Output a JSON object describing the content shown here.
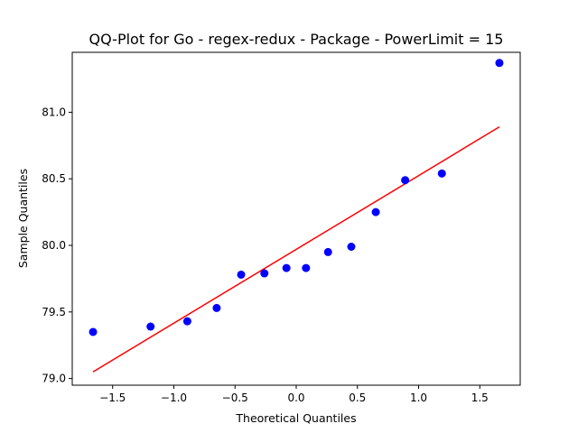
{
  "chart_data": {
    "type": "scatter",
    "title": "QQ-Plot for Go - regex-redux - Package - PowerLimit = 15",
    "xlabel": "Theoretical Quantiles",
    "ylabel": "Sample Quantiles",
    "xlim": [
      -1.83,
      1.83
    ],
    "ylim": [
      78.95,
      81.45
    ],
    "grid": false,
    "x_ticks": [
      -1.5,
      -1.0,
      -0.5,
      0.0,
      0.5,
      1.0,
      1.5
    ],
    "x_tick_labels": [
      "−1.5",
      "−1.0",
      "−0.5",
      "0.0",
      "0.5",
      "1.0",
      "1.5"
    ],
    "y_ticks": [
      79.0,
      79.5,
      80.0,
      80.5,
      81.0
    ],
    "y_tick_labels": [
      "79.0",
      "79.5",
      "80.0",
      "80.5",
      "81.0"
    ],
    "points": {
      "color": "#0000ff",
      "x": [
        -1.66,
        -1.19,
        -0.89,
        -0.65,
        -0.45,
        -0.26,
        -0.08,
        0.08,
        0.26,
        0.45,
        0.65,
        0.89,
        1.19,
        1.66
      ],
      "y": [
        79.35,
        79.39,
        79.43,
        79.53,
        79.78,
        79.79,
        79.83,
        79.83,
        79.95,
        79.99,
        80.25,
        80.49,
        80.54,
        81.37
      ]
    },
    "fit_line": {
      "color": "#ff0000",
      "x": [
        -1.66,
        1.66
      ],
      "y": [
        79.05,
        80.89
      ]
    }
  }
}
